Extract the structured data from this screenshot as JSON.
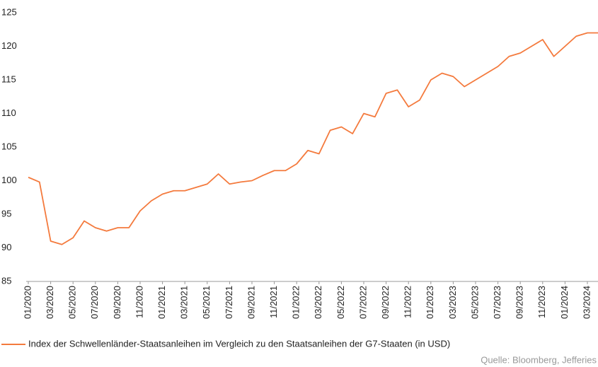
{
  "chart_data": {
    "type": "line",
    "categories": [
      "01/2020",
      null,
      "03/2020",
      null,
      "05/2020",
      null,
      "07/2020",
      null,
      "09/2020",
      null,
      "11/2020",
      null,
      "01/2021",
      null,
      "03/2021",
      null,
      "05/2021",
      null,
      "07/2021",
      null,
      "09/2021",
      null,
      "11/2021",
      null,
      "01/2022",
      null,
      "03/2022",
      null,
      "05/2022",
      null,
      "07/2022",
      null,
      "09/2022",
      null,
      "11/2022",
      null,
      "01/2023",
      null,
      "03/2023",
      null,
      "05/2023",
      null,
      "07/2023",
      null,
      "09/2023",
      null,
      "11/2023",
      null,
      "01/2024",
      null,
      "03/2024",
      null
    ],
    "series": [
      {
        "name": "Index der Schwellenländer-Staatsanleihen im Vergleich zu den Staatsanleihen der G7-Staaten (in USD)",
        "color": "#f47a3d",
        "values": [
          100.5,
          99.8,
          91,
          90.5,
          91.5,
          94,
          93,
          92.5,
          93,
          93,
          95.5,
          97,
          98,
          98.5,
          98.5,
          99,
          99.5,
          101,
          99.5,
          99.8,
          100,
          100.8,
          101.5,
          101.5,
          102.5,
          104.5,
          104,
          107.5,
          108,
          107,
          110,
          109.5,
          113,
          113.5,
          111,
          112,
          115,
          116,
          115.5,
          114,
          115,
          116,
          117,
          118.5,
          119,
          120,
          121,
          118.5,
          120,
          121.5,
          122,
          122
        ]
      }
    ],
    "ylim": [
      85,
      125
    ],
    "yticks": [
      85,
      90,
      95,
      100,
      105,
      110,
      115,
      120,
      125
    ],
    "legend": "bottom",
    "source": "Quelle: Bloomberg, Jefferies"
  }
}
